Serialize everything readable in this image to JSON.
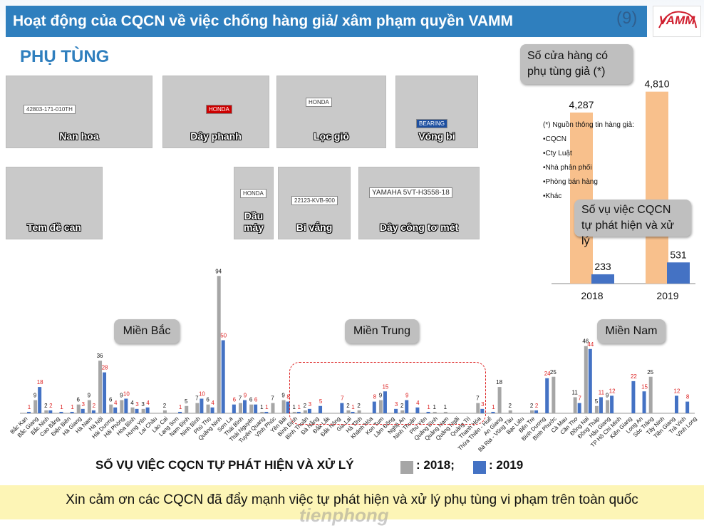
{
  "slide": {
    "title": "Hoạt động của CQCN về việc chống hàng giả/ xâm phạm quyền VAMM",
    "page_number": "(9)",
    "logo_text": "VAMM",
    "section_title": "PHỤ TÙNG"
  },
  "photos": [
    {
      "caption": "Nan hoa",
      "tag": "42803-171-010TH",
      "color": "#8a96a6"
    },
    {
      "caption": "Dây phanh",
      "tag": "HONDA",
      "color": "#dcdcdc"
    },
    {
      "caption": "Lọc gió",
      "tag": "HONDA",
      "color": "#3c6b3c"
    },
    {
      "caption": "Vòng bi",
      "tag": "BEARING",
      "color": "#e9e9e9"
    },
    {
      "caption": "Tem đề can",
      "tag": "",
      "color": "#6a7a8a"
    },
    {
      "caption": "Dầu máy",
      "tag": "HONDA",
      "color": "#b83a2a"
    },
    {
      "caption": "Bi vắng",
      "tag": "22123-KVB-900",
      "color": "#cfcfcf"
    },
    {
      "caption": "Dây công tơ mét",
      "tag": "YAMAHA  5VT-H3558-18",
      "color": "#d8d8d8"
    }
  ],
  "callouts": {
    "stores": "Số cửa hàng có phụ tùng giả (*)",
    "cases": "Số vụ việc CQCN tự phát hiện và xử lý",
    "north": "Miền Bắc",
    "central": "Miền Trung",
    "south": "Miền Nam"
  },
  "sources": {
    "heading": "(*) Nguồn thông tin hàng giả:",
    "items": [
      "•CQCN",
      "•Cty Luật",
      "•Nhà phân phối",
      "•Phòng bán hàng",
      "•Khác"
    ]
  },
  "legend": {
    "label": "SỐ VỤ VIỆC CQCN TỰ PHÁT HIỆN VÀ XỬ LÝ",
    "series_2018": ": 2018;",
    "series_2019": ": 2019"
  },
  "thanks": "Xin cảm ơn các CQCN đã đẩy mạnh việc tự phát hiện và xử lý phụ tùng vi phạm trên toàn quốc",
  "watermark": "tienphong",
  "colors": {
    "y2018": "#a6a6a6",
    "y2019": "#4472c4",
    "stores_bar": "#f8c08c",
    "cases_bar": "#4472c4",
    "label_2019": "#d22"
  },
  "chart_data": [
    {
      "type": "bar",
      "title": "",
      "categories": [
        "2018",
        "2019"
      ],
      "series": [
        {
          "name": "Số cửa hàng có phụ tùng giả (*)",
          "values": [
            4287,
            4810
          ]
        },
        {
          "name": "Số vụ việc CQCN tự phát hiện và xử lý",
          "values": [
            233,
            531
          ]
        }
      ],
      "value_labels": [
        [
          "4,287",
          "4,810"
        ],
        [
          "233",
          "531"
        ]
      ],
      "ylim": [
        0,
        5000
      ]
    },
    {
      "type": "bar",
      "title": "SỐ VỤ VIỆC CQCN TỰ PHÁT HIỆN VÀ XỬ LÝ",
      "ylim": [
        0,
        100
      ],
      "categories": [
        "Bắc Kạn",
        "Bắc Giang",
        "Bắc Ninh",
        "Cao Bằng",
        "Điện Biên",
        "Hà Giang",
        "Hà Nam",
        "Hà Nội",
        "Hải Dương",
        "Hải Phòng",
        "Hòa Bình",
        "Hưng Yên",
        "Lai Châu",
        "Lào Cai",
        "Lạng Sơn",
        "Nam Định",
        "Ninh Bình",
        "Phú Thọ",
        "Quảng Ninh",
        "Sơn La",
        "Thái Bình",
        "Thái Nguyên",
        "Tuyên Quang",
        "Vĩnh Phúc",
        "Yên Bái",
        "Bình Định",
        "Bình Thuận",
        "Đà Nẵng",
        "Đắk Lắk",
        "Đắk Nông",
        "Gia Lai",
        "Hà Tĩnh",
        "Khánh Hòa",
        "Kon Tum",
        "Lâm Đồng",
        "Nghệ An",
        "Ninh Thuận",
        "Phú Yên",
        "Quảng Bình",
        "Quảng Nam",
        "Quảng Ngãi",
        "Quảng Trị",
        "Thanh Hóa",
        "Thừa Thiên - Huế",
        "An Giang",
        "Bà Rịa - Vũng Tàu",
        "Bạc Liêu",
        "Bến Tre",
        "Bình Dương",
        "Bình Phước",
        "Cà Mau",
        "Cần Thơ",
        "Đồng Nai",
        "Đồng Tháp",
        "Hậu Giang",
        "TP Hồ Chí Minh",
        "Kiên Giang",
        "Long An",
        "Sóc Trăng",
        "Tây Ninh",
        "Tiền Giang",
        "Trà Vinh",
        "Vĩnh Long"
      ],
      "series": [
        {
          "name": "2018",
          "values": [
            0,
            9,
            2,
            0,
            0,
            6,
            9,
            36,
            6,
            9,
            4,
            3,
            0,
            2,
            0,
            5,
            7,
            6,
            94,
            0,
            7,
            6,
            1,
            7,
            9,
            1,
            2,
            0,
            0,
            0,
            2,
            2,
            0,
            9,
            0,
            2,
            0,
            0,
            1,
            1,
            0,
            0,
            7,
            0,
            18,
            2,
            0,
            2,
            0,
            25,
            0,
            11,
            46,
            5,
            9,
            0,
            0,
            0,
            25,
            0,
            0,
            0,
            0
          ]
        },
        {
          "name": "2019",
          "values": [
            1,
            18,
            2,
            1,
            1,
            3,
            2,
            28,
            4,
            10,
            3,
            4,
            0,
            0,
            1,
            0,
            10,
            4,
            50,
            6,
            9,
            6,
            1,
            0,
            8,
            1,
            3,
            5,
            0,
            7,
            1,
            0,
            8,
            15,
            3,
            9,
            4,
            1,
            0,
            0,
            0,
            0,
            3,
            1,
            0,
            0,
            0,
            2,
            24,
            0,
            0,
            7,
            44,
            11,
            12,
            0,
            22,
            15,
            0,
            0,
            12,
            8,
            0
          ]
        }
      ]
    }
  ]
}
